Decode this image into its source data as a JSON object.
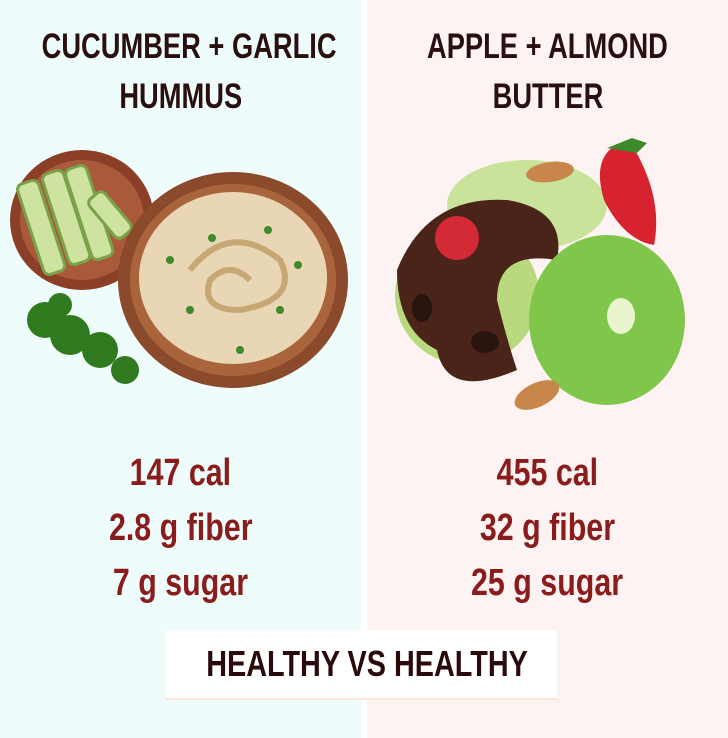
{
  "left": {
    "title_lines": [
      "CUCUMBER + GARLIC",
      "HUMMUS"
    ],
    "stats": [
      "147 cal",
      "2.8 g fiber",
      "7 g sugar"
    ],
    "image": "hummus-bowl-with-cucumber-and-parsley",
    "background": "#effcfc"
  },
  "right": {
    "title_lines": [
      "APPLE + ALMOND",
      "BUTTER"
    ],
    "stats": [
      "455 cal",
      "32 g fiber",
      "25 g sugar"
    ],
    "image": "apple-slices-with-almond-butter-and-strawberry",
    "background": "#fdf3f2"
  },
  "label": "HEALTHY VS HEALTHY",
  "colors": {
    "title": "#2a0f0f",
    "stats": "#8a1c1c"
  }
}
